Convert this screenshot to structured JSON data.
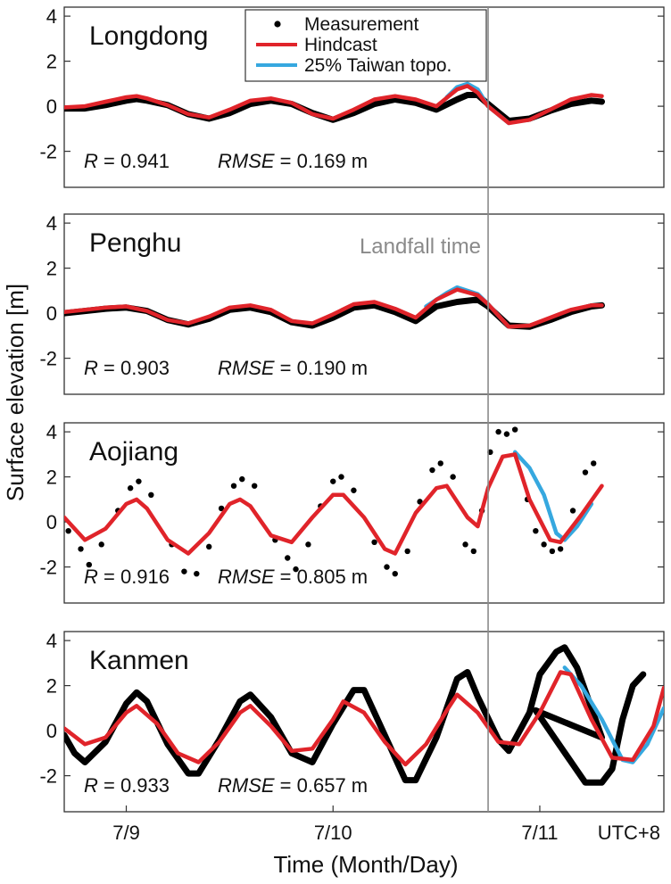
{
  "chart_data": {
    "type": "line",
    "ylabel": "Surface elevation [m]",
    "xlabel": "Time (Month/Day)",
    "x_tick_labels": [
      "7/9",
      "7/10",
      "7/11",
      "UTC+8"
    ],
    "y_tick_labels": [
      "4",
      "2",
      "0",
      "-2"
    ],
    "ylim": [
      -3.6,
      4.4
    ],
    "xlim": [
      -0.3,
      2.6
    ],
    "landfall_label": "Landfall time",
    "landfall_x": 1.75,
    "legend": {
      "placement": "top, inside first panel",
      "entries": [
        {
          "label": "Measurement",
          "marker": "dot",
          "color": "#000000"
        },
        {
          "label": "Hindcast",
          "marker": "line",
          "color": "#e0242a"
        },
        {
          "label": "25% Taiwan topo.",
          "marker": "line",
          "color": "#36a8df"
        }
      ]
    },
    "colors": {
      "measurement": "#000000",
      "hindcast": "#e0242a",
      "topo25": "#36a8df",
      "landfall_line": "#8a8a8a"
    },
    "panels": [
      {
        "station": "Longdong",
        "r_label": "R",
        "r_value": "= 0.941",
        "rmse_label": "RMSE",
        "rmse_value": "= 0.169 m",
        "measurement_style": "continuous",
        "measurement": [
          [
            -0.3,
            -0.1
          ],
          [
            -0.2,
            -0.1
          ],
          [
            -0.1,
            0.05
          ],
          [
            0.0,
            0.25
          ],
          [
            0.05,
            0.32
          ],
          [
            0.1,
            0.25
          ],
          [
            0.2,
            0.05
          ],
          [
            0.3,
            -0.35
          ],
          [
            0.4,
            -0.55
          ],
          [
            0.5,
            -0.3
          ],
          [
            0.6,
            0.1
          ],
          [
            0.7,
            0.25
          ],
          [
            0.8,
            0.1
          ],
          [
            0.9,
            -0.3
          ],
          [
            1.0,
            -0.6
          ],
          [
            1.1,
            -0.3
          ],
          [
            1.2,
            0.1
          ],
          [
            1.3,
            0.3
          ],
          [
            1.4,
            0.15
          ],
          [
            1.5,
            -0.15
          ],
          [
            1.6,
            0.3
          ],
          [
            1.65,
            0.5
          ],
          [
            1.7,
            0.5
          ],
          [
            1.75,
            0.1
          ],
          [
            1.85,
            -0.65
          ],
          [
            1.95,
            -0.55
          ],
          [
            2.05,
            -0.2
          ],
          [
            2.15,
            0.1
          ],
          [
            2.25,
            0.25
          ],
          [
            2.3,
            0.2
          ]
        ],
        "hindcast": [
          [
            -0.3,
            -0.05
          ],
          [
            -0.2,
            0.0
          ],
          [
            -0.1,
            0.2
          ],
          [
            0.0,
            0.4
          ],
          [
            0.05,
            0.45
          ],
          [
            0.1,
            0.35
          ],
          [
            0.2,
            0.05
          ],
          [
            0.3,
            -0.35
          ],
          [
            0.4,
            -0.5
          ],
          [
            0.5,
            -0.15
          ],
          [
            0.6,
            0.25
          ],
          [
            0.7,
            0.35
          ],
          [
            0.8,
            0.15
          ],
          [
            0.9,
            -0.35
          ],
          [
            1.0,
            -0.55
          ],
          [
            1.1,
            -0.15
          ],
          [
            1.2,
            0.3
          ],
          [
            1.3,
            0.45
          ],
          [
            1.4,
            0.3
          ],
          [
            1.5,
            0.0
          ],
          [
            1.6,
            0.75
          ],
          [
            1.65,
            0.9
          ],
          [
            1.7,
            0.6
          ],
          [
            1.75,
            0.0
          ],
          [
            1.85,
            -0.75
          ],
          [
            1.95,
            -0.6
          ],
          [
            2.05,
            -0.15
          ],
          [
            2.15,
            0.3
          ],
          [
            2.25,
            0.5
          ],
          [
            2.3,
            0.45
          ]
        ],
        "topo25": [
          [
            1.55,
            0.4
          ],
          [
            1.6,
            0.85
          ],
          [
            1.65,
            1.0
          ],
          [
            1.7,
            0.75
          ],
          [
            1.75,
            0.0
          ],
          [
            1.85,
            -0.75
          ]
        ]
      },
      {
        "station": "Penghu",
        "r_label": "R",
        "r_value": "= 0.903",
        "rmse_label": "RMSE",
        "rmse_value": "= 0.190 m",
        "measurement_style": "continuous",
        "measurement": [
          [
            -0.3,
            0.0
          ],
          [
            -0.2,
            0.1
          ],
          [
            -0.1,
            0.2
          ],
          [
            0.0,
            0.25
          ],
          [
            0.1,
            0.1
          ],
          [
            0.2,
            -0.3
          ],
          [
            0.3,
            -0.5
          ],
          [
            0.4,
            -0.25
          ],
          [
            0.5,
            0.15
          ],
          [
            0.6,
            0.25
          ],
          [
            0.7,
            0.05
          ],
          [
            0.8,
            -0.4
          ],
          [
            0.9,
            -0.55
          ],
          [
            1.0,
            -0.2
          ],
          [
            1.1,
            0.25
          ],
          [
            1.2,
            0.35
          ],
          [
            1.3,
            0.05
          ],
          [
            1.4,
            -0.35
          ],
          [
            1.5,
            0.3
          ],
          [
            1.6,
            0.5
          ],
          [
            1.7,
            0.6
          ],
          [
            1.75,
            0.3
          ],
          [
            1.85,
            -0.55
          ],
          [
            1.95,
            -0.6
          ],
          [
            2.05,
            -0.3
          ],
          [
            2.15,
            0.05
          ],
          [
            2.25,
            0.3
          ],
          [
            2.3,
            0.35
          ]
        ],
        "hindcast": [
          [
            -0.3,
            0.05
          ],
          [
            -0.2,
            0.15
          ],
          [
            -0.1,
            0.25
          ],
          [
            0.0,
            0.3
          ],
          [
            0.1,
            0.1
          ],
          [
            0.2,
            -0.3
          ],
          [
            0.3,
            -0.45
          ],
          [
            0.4,
            -0.15
          ],
          [
            0.5,
            0.25
          ],
          [
            0.6,
            0.35
          ],
          [
            0.7,
            0.15
          ],
          [
            0.8,
            -0.35
          ],
          [
            0.9,
            -0.45
          ],
          [
            1.0,
            -0.05
          ],
          [
            1.1,
            0.4
          ],
          [
            1.2,
            0.5
          ],
          [
            1.3,
            0.2
          ],
          [
            1.4,
            -0.2
          ],
          [
            1.5,
            0.6
          ],
          [
            1.6,
            1.05
          ],
          [
            1.7,
            0.8
          ],
          [
            1.75,
            0.4
          ],
          [
            1.85,
            -0.6
          ],
          [
            1.95,
            -0.55
          ],
          [
            2.05,
            -0.2
          ],
          [
            2.15,
            0.15
          ],
          [
            2.25,
            0.35
          ],
          [
            2.3,
            0.35
          ]
        ],
        "topo25": [
          [
            1.45,
            0.3
          ],
          [
            1.55,
            0.9
          ],
          [
            1.6,
            1.15
          ],
          [
            1.7,
            0.85
          ],
          [
            1.75,
            0.4
          ],
          [
            1.85,
            -0.6
          ]
        ]
      },
      {
        "station": "Aojiang",
        "r_label": "R",
        "r_value": "= 0.916",
        "rmse_label": "RMSE",
        "rmse_value": "= 0.805 m",
        "measurement_style": "scatter",
        "measurement": [
          [
            -0.28,
            -0.4
          ],
          [
            -0.22,
            -1.2
          ],
          [
            -0.18,
            -1.9
          ],
          [
            -0.12,
            -1.0
          ],
          [
            -0.04,
            0.5
          ],
          [
            0.02,
            1.5
          ],
          [
            0.06,
            1.8
          ],
          [
            0.12,
            1.2
          ],
          [
            0.22,
            -1.0
          ],
          [
            0.28,
            -2.2
          ],
          [
            0.34,
            -2.3
          ],
          [
            0.4,
            -1.1
          ],
          [
            0.46,
            0.6
          ],
          [
            0.52,
            1.6
          ],
          [
            0.56,
            1.9
          ],
          [
            0.62,
            1.6
          ],
          [
            0.72,
            -0.8
          ],
          [
            0.78,
            -1.6
          ],
          [
            0.82,
            -2.1
          ],
          [
            0.88,
            -1.0
          ],
          [
            0.94,
            0.7
          ],
          [
            1.0,
            1.8
          ],
          [
            1.04,
            2.0
          ],
          [
            1.1,
            1.4
          ],
          [
            1.2,
            -0.9
          ],
          [
            1.26,
            -2.0
          ],
          [
            1.3,
            -2.3
          ],
          [
            1.36,
            -1.3
          ],
          [
            1.42,
            0.9
          ],
          [
            1.48,
            2.3
          ],
          [
            1.52,
            2.6
          ],
          [
            1.58,
            2.0
          ],
          [
            1.64,
            -1.0
          ],
          [
            1.68,
            -1.3
          ],
          [
            1.72,
            0.5
          ],
          [
            1.76,
            3.1
          ],
          [
            1.8,
            4.0
          ],
          [
            1.84,
            3.9
          ],
          [
            1.88,
            4.1
          ],
          [
            1.94,
            1.0
          ],
          [
            1.98,
            -0.4
          ],
          [
            2.02,
            -1.0
          ],
          [
            2.06,
            -1.3
          ],
          [
            2.1,
            -1.2
          ],
          [
            2.16,
            0.5
          ],
          [
            2.22,
            2.2
          ],
          [
            2.26,
            2.6
          ]
        ],
        "hindcast": [
          [
            -0.3,
            0.2
          ],
          [
            -0.2,
            -0.8
          ],
          [
            -0.1,
            -0.3
          ],
          [
            0.0,
            0.8
          ],
          [
            0.05,
            1.0
          ],
          [
            0.1,
            0.6
          ],
          [
            0.2,
            -0.8
          ],
          [
            0.3,
            -1.4
          ],
          [
            0.4,
            -0.5
          ],
          [
            0.5,
            0.8
          ],
          [
            0.55,
            1.0
          ],
          [
            0.6,
            0.7
          ],
          [
            0.7,
            -0.6
          ],
          [
            0.8,
            -0.9
          ],
          [
            0.9,
            0.2
          ],
          [
            1.0,
            1.2
          ],
          [
            1.05,
            1.2
          ],
          [
            1.15,
            0.2
          ],
          [
            1.25,
            -1.2
          ],
          [
            1.3,
            -1.4
          ],
          [
            1.4,
            0.4
          ],
          [
            1.5,
            1.5
          ],
          [
            1.55,
            1.6
          ],
          [
            1.65,
            0.2
          ],
          [
            1.7,
            -0.2
          ],
          [
            1.75,
            1.5
          ],
          [
            1.82,
            2.9
          ],
          [
            1.88,
            3.0
          ],
          [
            1.95,
            1.0
          ],
          [
            2.05,
            -0.8
          ],
          [
            2.1,
            -0.9
          ],
          [
            2.2,
            0.3
          ],
          [
            2.3,
            1.6
          ]
        ],
        "topo25": [
          [
            1.88,
            3.1
          ],
          [
            1.95,
            2.4
          ],
          [
            2.02,
            1.2
          ],
          [
            2.08,
            -0.5
          ],
          [
            2.12,
            -0.8
          ],
          [
            2.18,
            -0.2
          ],
          [
            2.25,
            0.8
          ]
        ]
      },
      {
        "station": "Kanmen",
        "r_label": "R",
        "r_value": "= 0.933",
        "rmse_label": "RMSE",
        "rmse_value": "= 0.657 m",
        "measurement_style": "continuous",
        "measurement": [
          [
            -0.3,
            -0.2
          ],
          [
            -0.25,
            -1.0
          ],
          [
            -0.2,
            -1.4
          ],
          [
            -0.1,
            -0.5
          ],
          [
            0.0,
            1.2
          ],
          [
            0.05,
            1.7
          ],
          [
            0.1,
            1.3
          ],
          [
            0.2,
            -0.6
          ],
          [
            0.3,
            -1.9
          ],
          [
            0.35,
            -1.9
          ],
          [
            0.45,
            -0.4
          ],
          [
            0.55,
            1.3
          ],
          [
            0.6,
            1.6
          ],
          [
            0.7,
            0.6
          ],
          [
            0.8,
            -1.0
          ],
          [
            0.9,
            -1.4
          ],
          [
            1.0,
            0.3
          ],
          [
            1.1,
            1.8
          ],
          [
            1.15,
            1.8
          ],
          [
            1.25,
            -0.2
          ],
          [
            1.35,
            -2.2
          ],
          [
            1.4,
            -2.2
          ],
          [
            1.5,
            -0.3
          ],
          [
            1.6,
            2.3
          ],
          [
            1.65,
            2.6
          ],
          [
            1.7,
            1.5
          ],
          [
            1.8,
            -0.4
          ],
          [
            1.85,
            -0.9
          ],
          [
            1.95,
            0.8
          ],
          [
            2.0,
            2.5
          ],
          [
            2.08,
            3.5
          ],
          [
            2.12,
            3.7
          ],
          [
            2.18,
            2.8
          ],
          [
            2.25,
            1.0
          ],
          [
            2.3,
            -0.3
          ],
          [
            1.98,
            0.9
          ],
          [
            2.22,
            -2.3
          ],
          [
            2.25,
            -2.3
          ],
          [
            2.3,
            -2.3
          ],
          [
            2.35,
            -1.7
          ],
          [
            2.4,
            0.5
          ],
          [
            2.45,
            2.0
          ],
          [
            2.5,
            2.5
          ]
        ],
        "hindcast": [
          [
            -0.3,
            0.1
          ],
          [
            -0.2,
            -0.6
          ],
          [
            -0.1,
            -0.3
          ],
          [
            0.0,
            0.8
          ],
          [
            0.05,
            1.1
          ],
          [
            0.15,
            0.3
          ],
          [
            0.25,
            -1.0
          ],
          [
            0.35,
            -1.4
          ],
          [
            0.45,
            -0.5
          ],
          [
            0.55,
            0.8
          ],
          [
            0.6,
            1.1
          ],
          [
            0.7,
            0.2
          ],
          [
            0.8,
            -0.9
          ],
          [
            0.9,
            -0.8
          ],
          [
            1.0,
            0.5
          ],
          [
            1.05,
            1.3
          ],
          [
            1.15,
            0.8
          ],
          [
            1.25,
            -0.5
          ],
          [
            1.35,
            -1.5
          ],
          [
            1.45,
            -0.6
          ],
          [
            1.55,
            0.9
          ],
          [
            1.6,
            1.6
          ],
          [
            1.7,
            0.8
          ],
          [
            1.8,
            -0.5
          ],
          [
            1.9,
            -0.6
          ],
          [
            2.0,
            0.8
          ],
          [
            2.1,
            2.6
          ],
          [
            2.15,
            2.5
          ],
          [
            2.25,
            0.5
          ],
          [
            2.35,
            -1.2
          ],
          [
            2.45,
            -1.3
          ],
          [
            2.55,
            0.2
          ],
          [
            2.6,
            1.9
          ]
        ],
        "topo25": [
          [
            2.12,
            2.8
          ],
          [
            2.2,
            2.0
          ],
          [
            2.3,
            0.5
          ],
          [
            2.4,
            -1.3
          ],
          [
            2.45,
            -1.4
          ],
          [
            2.52,
            -0.6
          ],
          [
            2.6,
            1.0
          ]
        ]
      }
    ]
  }
}
